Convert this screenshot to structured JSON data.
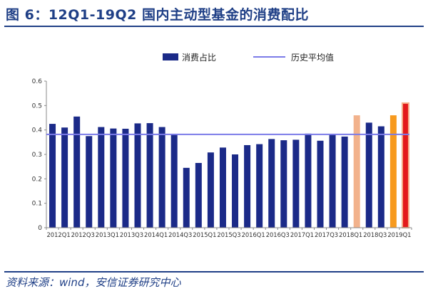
{
  "header": {
    "title": "图 6：12Q1-19Q2 国内主动型基金的消费配比"
  },
  "footer": {
    "source": "资料来源：wind，安信证券研究中心"
  },
  "colors": {
    "bar": "#1b2a88",
    "highlight_light": "#f2b28c",
    "highlight_orange": "#f79a1e",
    "highlight_red": "#e31a1c",
    "highlight_red_border": "#f5b08a",
    "average_line": "#7b7be8",
    "axis": "#888888",
    "frame": "#1f3f86"
  },
  "chart_data": {
    "type": "bar",
    "title": "",
    "xlabel": "",
    "ylabel": "",
    "ylim": [
      0,
      0.6
    ],
    "yticks": [
      "0",
      "0.1",
      "0.2",
      "0.3",
      "0.4",
      "0.5",
      "0.6"
    ],
    "grid": false,
    "legend_position": "top",
    "categories": [
      "2012Q1",
      "2012Q2",
      "2012Q3",
      "2012Q4",
      "2013Q1",
      "2013Q2",
      "2013Q3",
      "2013Q4",
      "2014Q1",
      "2014Q2",
      "2014Q3",
      "2014Q4",
      "2015Q1",
      "2015Q2",
      "2015Q3",
      "2015Q4",
      "2016Q1",
      "2016Q2",
      "2016Q3",
      "2016Q4",
      "2017Q1",
      "2017Q2",
      "2017Q3",
      "2017Q4",
      "2018Q1",
      "2018Q2",
      "2018Q3",
      "2018Q4",
      "2019Q1",
      "2019Q2"
    ],
    "tick_labels": [
      "2012Q1",
      "2012Q3",
      "2013Q1",
      "2013Q3",
      "2014Q1",
      "2014Q3",
      "2015Q1",
      "2015Q3",
      "2016Q1",
      "2016Q3",
      "2017Q1",
      "2017Q3",
      "2018Q1",
      "2018Q3",
      "2019Q1"
    ],
    "series": [
      {
        "name": "消费占比",
        "values": [
          0.425,
          0.41,
          0.455,
          0.375,
          0.412,
          0.406,
          0.405,
          0.427,
          0.428,
          0.412,
          0.38,
          0.245,
          0.265,
          0.308,
          0.328,
          0.3,
          0.338,
          0.342,
          0.363,
          0.358,
          0.36,
          0.385,
          0.356,
          0.38,
          0.373,
          0.46,
          0.43,
          0.415,
          0.46,
          0.51
        ],
        "highlight": {
          "25": "light",
          "28": "orange",
          "29": "red"
        }
      },
      {
        "name": "历史平均值",
        "type": "line",
        "value": 0.382
      }
    ]
  }
}
